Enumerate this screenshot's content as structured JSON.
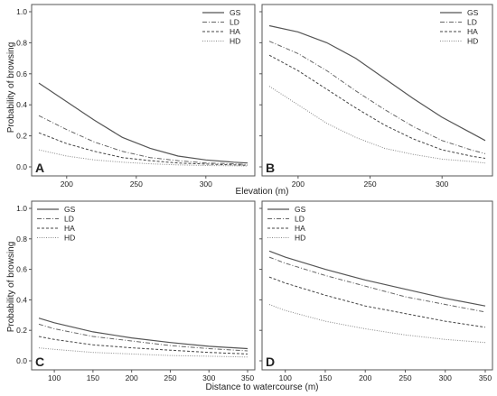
{
  "figure": {
    "ylabel": "Probability of browsing",
    "xlabel_top": "Elevation (m)",
    "xlabel_bottom": "Distance to watercourse (m)"
  },
  "legend_entries": [
    "GS",
    "LD",
    "HA",
    "HD"
  ],
  "chart_data": [
    {
      "type": "line",
      "panel_label": "A",
      "xlim": [
        180,
        330
      ],
      "ylim": [
        0,
        1.0
      ],
      "x": [
        180,
        200,
        220,
        240,
        260,
        280,
        300,
        320,
        330
      ],
      "xticks": [
        200,
        250,
        300
      ],
      "yticks": [
        0.0,
        0.2,
        0.4,
        0.6,
        0.8,
        1.0
      ],
      "legend_position": "top-right",
      "series": [
        {
          "name": "GS",
          "style": "solid",
          "values": [
            0.54,
            0.42,
            0.3,
            0.19,
            0.12,
            0.07,
            0.045,
            0.03,
            0.025
          ]
        },
        {
          "name": "LD",
          "style": "dashdot",
          "values": [
            0.33,
            0.24,
            0.16,
            0.1,
            0.06,
            0.04,
            0.025,
            0.02,
            0.015
          ]
        },
        {
          "name": "HA",
          "style": "dashed",
          "values": [
            0.22,
            0.15,
            0.1,
            0.06,
            0.04,
            0.025,
            0.018,
            0.013,
            0.01
          ]
        },
        {
          "name": "HD",
          "style": "dotted",
          "values": [
            0.11,
            0.07,
            0.045,
            0.03,
            0.02,
            0.013,
            0.009,
            0.007,
            0.006
          ]
        }
      ]
    },
    {
      "type": "line",
      "panel_label": "B",
      "xlim": [
        180,
        330
      ],
      "ylim": [
        0,
        1.0
      ],
      "x": [
        180,
        200,
        220,
        240,
        260,
        280,
        300,
        320,
        330
      ],
      "xticks": [
        200,
        250,
        300
      ],
      "yticks": [
        0.0,
        0.2,
        0.4,
        0.6,
        0.8,
        1.0
      ],
      "legend_position": "top-right",
      "series": [
        {
          "name": "GS",
          "style": "solid",
          "values": [
            0.91,
            0.87,
            0.8,
            0.7,
            0.57,
            0.44,
            0.32,
            0.22,
            0.17
          ]
        },
        {
          "name": "LD",
          "style": "dashdot",
          "values": [
            0.81,
            0.73,
            0.62,
            0.49,
            0.37,
            0.26,
            0.17,
            0.11,
            0.085
          ]
        },
        {
          "name": "HA",
          "style": "dashed",
          "values": [
            0.72,
            0.62,
            0.5,
            0.38,
            0.27,
            0.18,
            0.11,
            0.07,
            0.055
          ]
        },
        {
          "name": "HD",
          "style": "dotted",
          "values": [
            0.52,
            0.4,
            0.28,
            0.19,
            0.12,
            0.08,
            0.05,
            0.035,
            0.025
          ]
        }
      ]
    },
    {
      "type": "line",
      "panel_label": "C",
      "xlim": [
        80,
        350
      ],
      "ylim": [
        0,
        1.0
      ],
      "x": [
        80,
        100,
        150,
        200,
        250,
        300,
        350
      ],
      "xticks": [
        100,
        150,
        200,
        250,
        300,
        350
      ],
      "yticks": [
        0.0,
        0.2,
        0.4,
        0.6,
        0.8,
        1.0
      ],
      "legend_position": "top-left",
      "series": [
        {
          "name": "GS",
          "style": "solid",
          "values": [
            0.28,
            0.25,
            0.19,
            0.15,
            0.12,
            0.095,
            0.08
          ]
        },
        {
          "name": "LD",
          "style": "dashdot",
          "values": [
            0.24,
            0.21,
            0.16,
            0.13,
            0.1,
            0.08,
            0.065
          ]
        },
        {
          "name": "HA",
          "style": "dashed",
          "values": [
            0.16,
            0.14,
            0.105,
            0.085,
            0.07,
            0.055,
            0.045
          ]
        },
        {
          "name": "HD",
          "style": "dotted",
          "values": [
            0.085,
            0.075,
            0.055,
            0.045,
            0.035,
            0.03,
            0.025
          ]
        }
      ]
    },
    {
      "type": "line",
      "panel_label": "D",
      "xlim": [
        80,
        350
      ],
      "ylim": [
        0,
        1.0
      ],
      "x": [
        80,
        100,
        150,
        200,
        250,
        300,
        350
      ],
      "xticks": [
        100,
        150,
        200,
        250,
        300,
        350
      ],
      "yticks": [
        0.0,
        0.2,
        0.4,
        0.6,
        0.8,
        1.0
      ],
      "legend_position": "top-left",
      "series": [
        {
          "name": "GS",
          "style": "solid",
          "values": [
            0.72,
            0.68,
            0.6,
            0.53,
            0.47,
            0.41,
            0.36
          ]
        },
        {
          "name": "LD",
          "style": "dashdot",
          "values": [
            0.68,
            0.64,
            0.56,
            0.49,
            0.42,
            0.37,
            0.32
          ]
        },
        {
          "name": "HA",
          "style": "dashed",
          "values": [
            0.55,
            0.51,
            0.43,
            0.36,
            0.31,
            0.26,
            0.22
          ]
        },
        {
          "name": "HD",
          "style": "dotted",
          "values": [
            0.37,
            0.33,
            0.26,
            0.21,
            0.17,
            0.14,
            0.12
          ]
        }
      ]
    }
  ]
}
